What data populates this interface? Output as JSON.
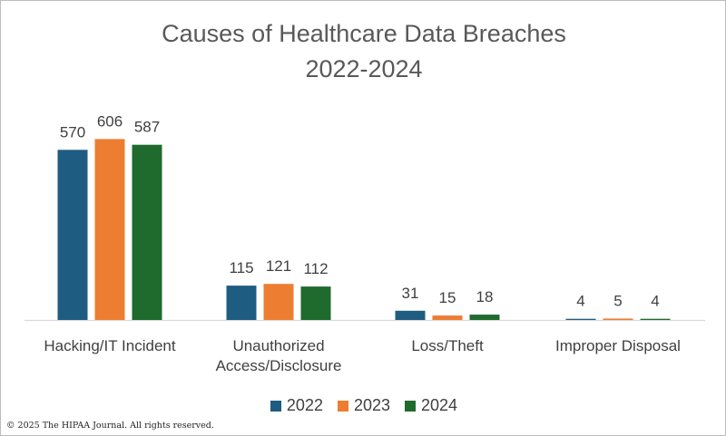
{
  "chart_data": {
    "type": "bar",
    "title_line1": "Causes of Healthcare Data Breaches",
    "title_line2": "2022-2024",
    "categories": [
      "Hacking/IT Incident",
      "Unauthorized Access/Disclosure",
      "Loss/Theft",
      "Improper Disposal"
    ],
    "category_lines": [
      [
        "Hacking/IT Incident"
      ],
      [
        "Unauthorized",
        "Access/Disclosure"
      ],
      [
        "Loss/Theft"
      ],
      [
        "Improper Disposal"
      ]
    ],
    "series": [
      {
        "name": "2022",
        "color": "#1f5c82",
        "values": [
          570,
          115,
          31,
          4
        ]
      },
      {
        "name": "2023",
        "color": "#ed7d31",
        "values": [
          606,
          121,
          15,
          5
        ]
      },
      {
        "name": "2024",
        "color": "#1e6b2d",
        "values": [
          587,
          112,
          18,
          4
        ]
      }
    ],
    "ylim": [
      0,
      650
    ],
    "grid": false,
    "data_labels": true,
    "legend_position": "bottom"
  },
  "footer": {
    "copyright": "© 2025 The HIPAA Journal. All rights reserved."
  }
}
